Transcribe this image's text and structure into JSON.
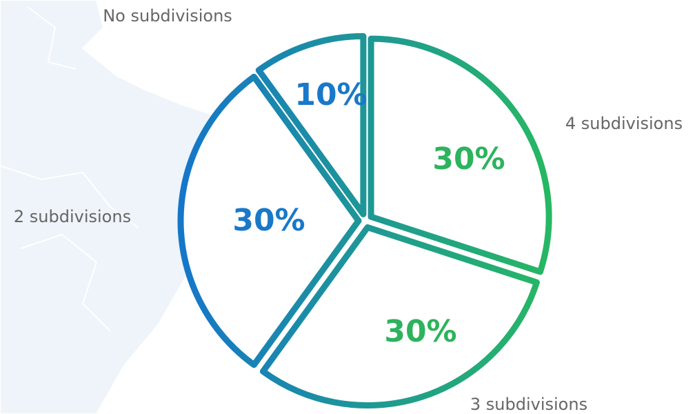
{
  "chart_data": {
    "type": "pie",
    "categories": [
      "4 subdivisions",
      "3 subdivisions",
      "2 subdivisions",
      "No subdivisions"
    ],
    "values": [
      30,
      30,
      30,
      10
    ],
    "value_labels": [
      "30%",
      "30%",
      "30%",
      "10%"
    ],
    "label_colors": [
      "#2db35d",
      "#2db35d",
      "#1a78c8",
      "#1a78c8"
    ],
    "gradient": [
      "#1577c8",
      "#27b862"
    ]
  }
}
